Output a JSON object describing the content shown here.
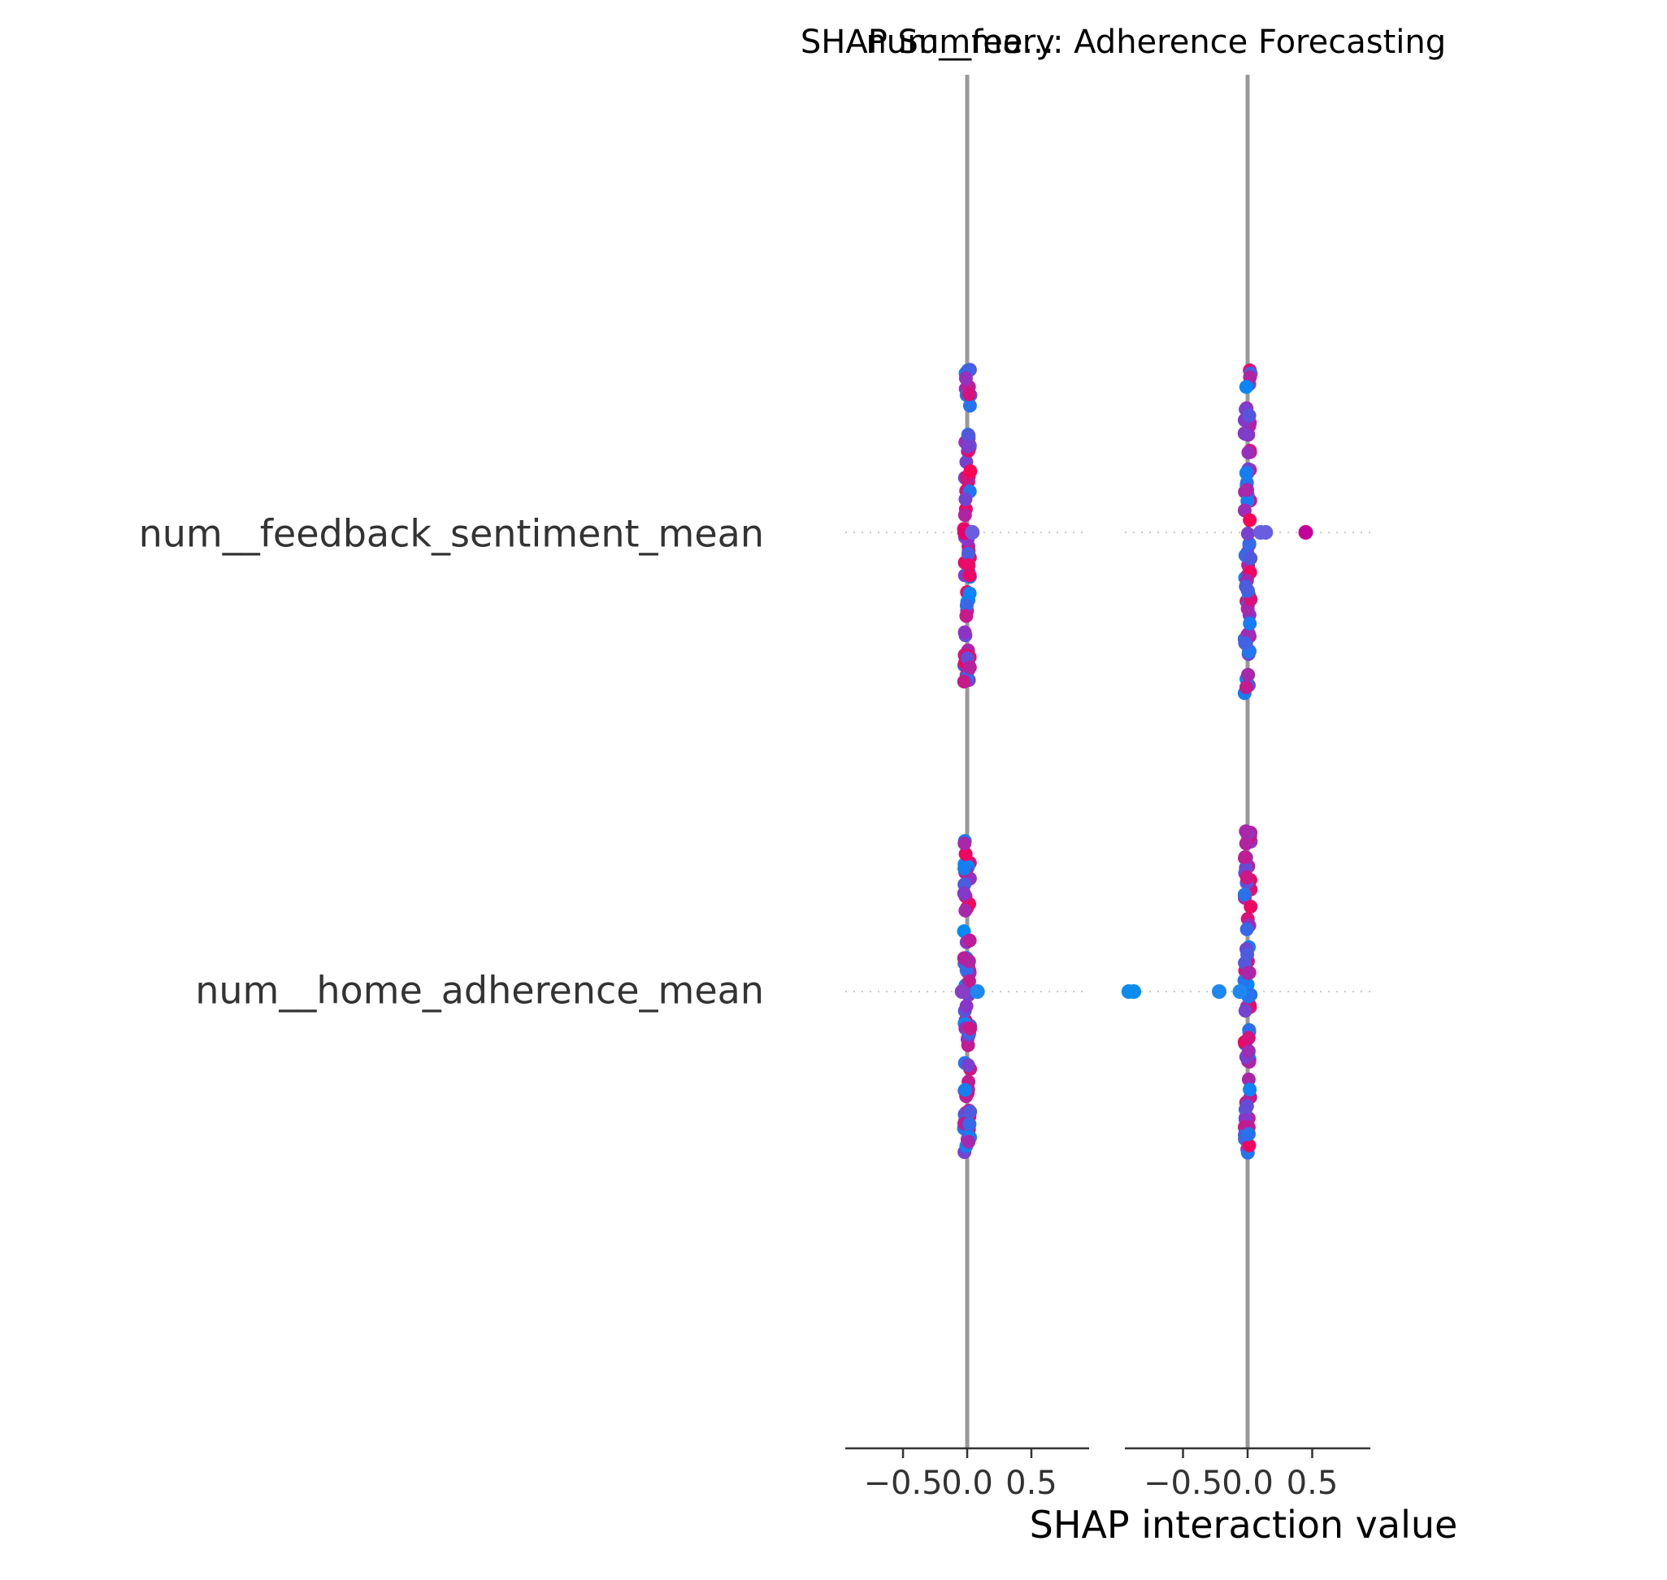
{
  "chart_data": {
    "type": "scatter",
    "title": "SHAP Summary: Adherence Forecasting",
    "xlabel": "SHAP interaction value",
    "features": [
      "num__feedback_sentiment_mean",
      "num__home_adherence_mean"
    ],
    "panels": [
      {
        "title": "num__fee...",
        "xlim": [
          -0.95,
          0.95
        ],
        "xticks": [
          -0.5,
          0.0,
          0.5
        ],
        "xtick_labels": [
          "−0.5",
          "0.0",
          "0.5"
        ],
        "rows": [
          {
            "feature": "num__feedback_sentiment_mean",
            "outliers": [
              {
                "x": -0.02,
                "color": "#e8006f"
              },
              {
                "x": 0.04,
                "color": "#6a5ee0"
              }
            ]
          },
          {
            "feature": "num__home_adherence_mean",
            "outliers": [
              {
                "x": -0.04,
                "color": "#8a3ec8"
              },
              {
                "x": 0.08,
                "color": "#1e88f0"
              }
            ]
          }
        ]
      },
      {
        "title": "",
        "xlim": [
          -0.95,
          0.95
        ],
        "xticks": [
          -0.5,
          0.0,
          0.5
        ],
        "xtick_labels": [
          "−0.5",
          "0.0",
          "0.5"
        ],
        "rows": [
          {
            "feature": "num__feedback_sentiment_mean",
            "outliers": [
              {
                "x": 0.1,
                "color": "#6a5ee0"
              },
              {
                "x": 0.14,
                "color": "#6a5ee0"
              },
              {
                "x": 0.45,
                "color": "#c4009a"
              }
            ]
          },
          {
            "feature": "num__home_adherence_mean",
            "outliers": [
              {
                "x": -0.92,
                "color": "#0d8cf0"
              },
              {
                "x": -0.88,
                "color": "#0d8cf0"
              },
              {
                "x": -0.22,
                "color": "#1e88f0"
              },
              {
                "x": -0.06,
                "color": "#1e88f0"
              }
            ]
          }
        ]
      }
    ],
    "colors": {
      "low": "#008bfb",
      "high": "#ff0052",
      "zero_line": "#999999",
      "grid": "#cccccc"
    }
  }
}
